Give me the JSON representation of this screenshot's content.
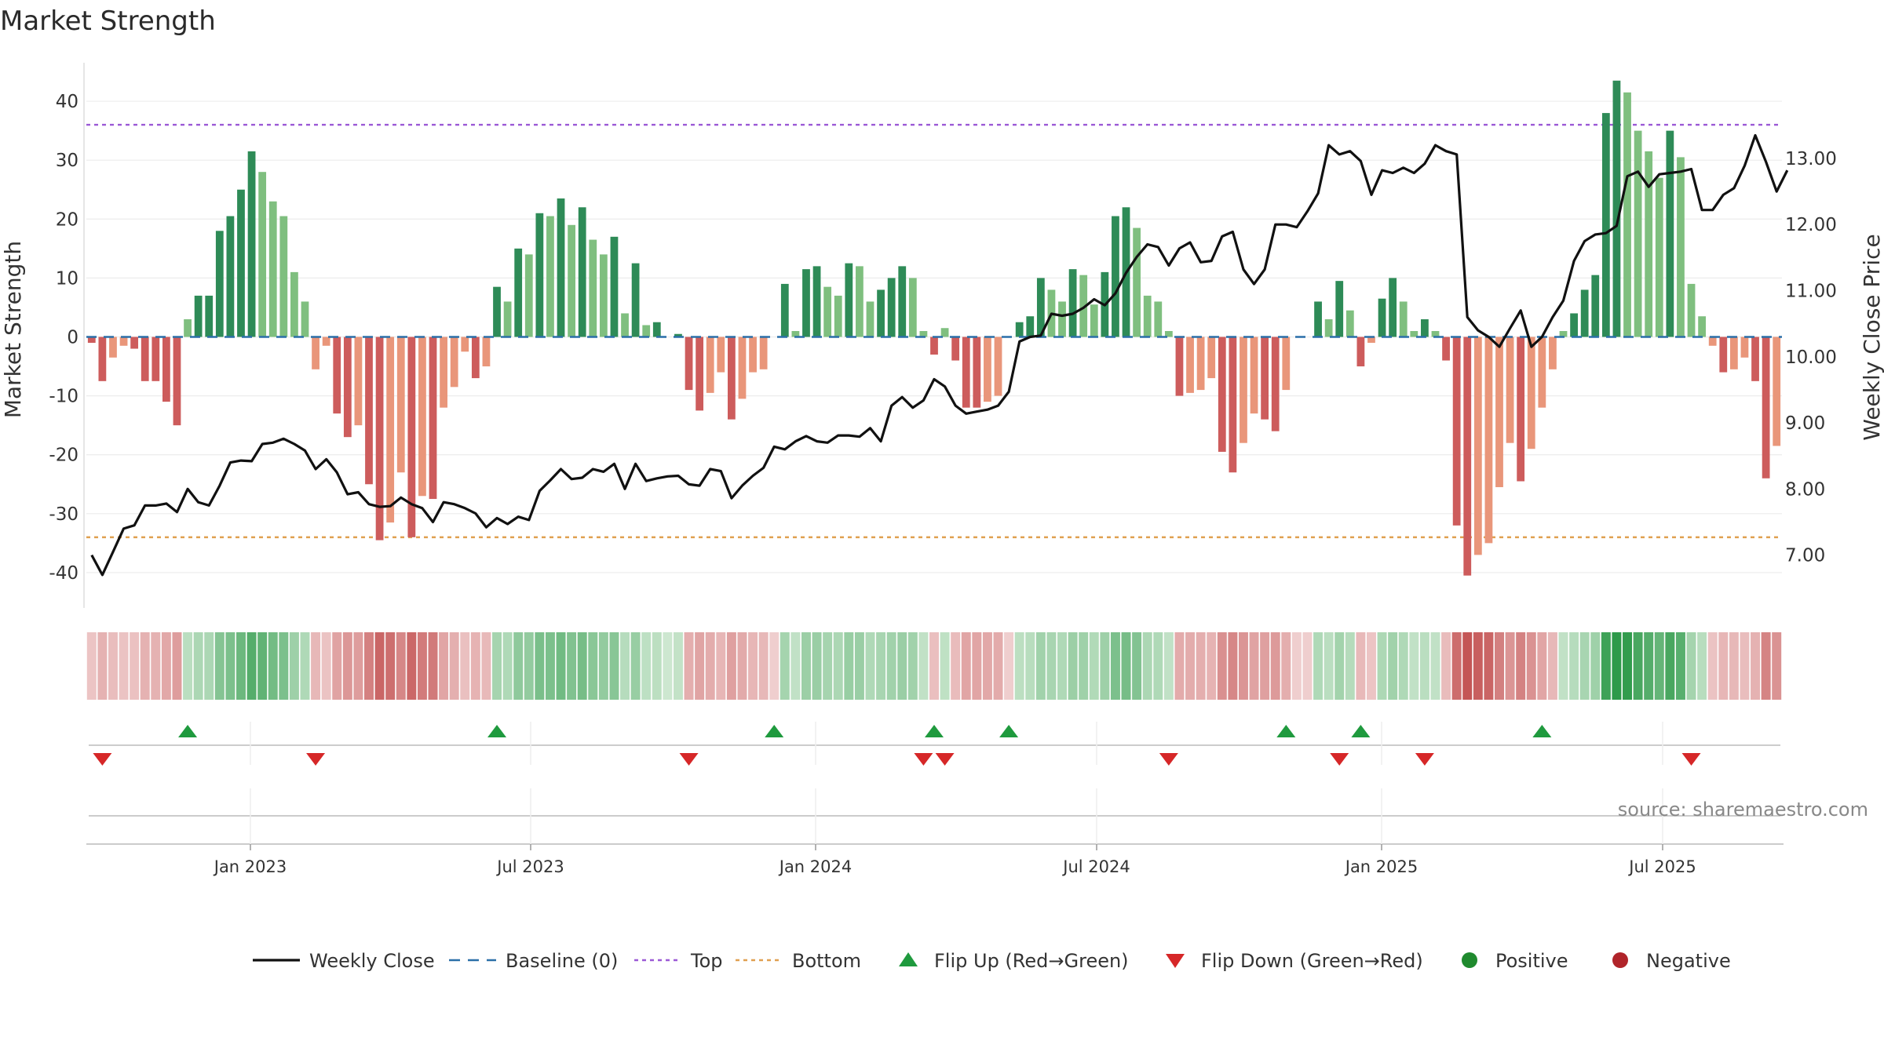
{
  "chart_data": {
    "type": "bar+line",
    "title": "Market Strength",
    "ylabel_left": "Market Strength",
    "ylabel_right": "Weekly Close Price",
    "source": "source: sharemaestro.com",
    "left_axis": {
      "ticks": [
        40,
        30,
        20,
        10,
        0,
        -10,
        -20,
        -30,
        -40
      ],
      "range": [
        -46,
        46
      ]
    },
    "right_axis": {
      "ticks": [
        "13.00",
        "12.00",
        "11.00",
        "10.00",
        "9.00",
        "8.00",
        "7.00"
      ],
      "range": [
        6.2,
        14.4
      ]
    },
    "x_ticks": [
      "Jan 2023",
      "Jul 2023",
      "Jan 2024",
      "Jul 2024",
      "Jan 2025",
      "Jul 2025"
    ],
    "top_level": 36,
    "bottom_level": -34,
    "strength": [
      -1,
      -7.5,
      -3.5,
      -1.5,
      -2,
      -7.5,
      -7.5,
      -11,
      -15,
      3,
      7,
      7,
      18,
      20.5,
      25,
      31.5,
      28,
      23,
      20.5,
      11,
      6,
      -5.5,
      -1.5,
      -13,
      -17,
      -15,
      -25,
      -34.5,
      -31.5,
      -23,
      -34,
      -27,
      -27.5,
      -12,
      -8.5,
      -2.5,
      -7,
      -5,
      8.5,
      6,
      15,
      14,
      21,
      20.5,
      23.5,
      19,
      22,
      16.5,
      14,
      17,
      4,
      12.5,
      2,
      2.5,
      0,
      0.5,
      -9,
      -12.5,
      -9.5,
      -6,
      -14,
      -10.5,
      -6,
      -5.5,
      0,
      9,
      1,
      11.5,
      12,
      8.5,
      7,
      12.5,
      12,
      6,
      8,
      10,
      12,
      10,
      1,
      -3,
      1.5,
      -4,
      -12,
      -12,
      -11,
      -10,
      0,
      2.5,
      3.5,
      10,
      8,
      6,
      11.5,
      10.5,
      5.5,
      11,
      20.5,
      22,
      18.5,
      7,
      6,
      1,
      -10,
      -9.5,
      -9,
      -7,
      -19.5,
      -23,
      -18,
      -13,
      -14,
      -16,
      -9,
      0,
      0,
      6,
      3,
      9.5,
      4.5,
      -5,
      -1,
      6.5,
      10,
      6,
      1,
      3,
      1,
      -4,
      -32,
      -40.5,
      -37,
      -35,
      -25.5,
      -18,
      -24.5,
      -19,
      -12,
      -5.5,
      1,
      4,
      8,
      10.5,
      38,
      43.5,
      41.5,
      35,
      31.5,
      27,
      35,
      30.5,
      9,
      3.5,
      -1.5,
      -6,
      -5.5,
      -3.5,
      -7.5,
      -24,
      -18.5
    ],
    "close": [
      7.0,
      6.7,
      7.05,
      7.4,
      7.45,
      7.75,
      7.75,
      7.78,
      7.65,
      8.0,
      7.8,
      7.75,
      8.05,
      8.4,
      8.43,
      8.42,
      8.68,
      8.7,
      8.76,
      8.68,
      8.58,
      8.3,
      8.45,
      8.25,
      7.92,
      7.95,
      7.77,
      7.73,
      7.74,
      7.87,
      7.77,
      7.71,
      7.5,
      7.8,
      7.77,
      7.71,
      7.63,
      7.42,
      7.56,
      7.47,
      7.58,
      7.53,
      7.97,
      8.13,
      8.3,
      8.15,
      8.17,
      8.3,
      8.26,
      8.38,
      8.0,
      8.38,
      8.12,
      8.16,
      8.19,
      8.2,
      8.07,
      8.05,
      8.3,
      8.27,
      7.86,
      8.05,
      8.2,
      8.32,
      8.64,
      8.6,
      8.72,
      8.8,
      8.72,
      8.7,
      8.81,
      8.81,
      8.79,
      8.92,
      8.72,
      9.26,
      9.39,
      9.23,
      9.34,
      9.66,
      9.55,
      9.26,
      9.14,
      9.17,
      9.2,
      9.26,
      9.47,
      10.23,
      10.3,
      10.32,
      10.65,
      10.62,
      10.65,
      10.74,
      10.87,
      10.78,
      10.96,
      11.27,
      11.51,
      11.7,
      11.66,
      11.38,
      11.64,
      11.73,
      11.43,
      11.45,
      11.82,
      11.89,
      11.32,
      11.1,
      11.32,
      12.0,
      12.0,
      11.96,
      12.2,
      12.47,
      13.2,
      13.06,
      13.11,
      12.96,
      12.45,
      12.82,
      12.78,
      12.86,
      12.78,
      12.92,
      13.2,
      13.11,
      13.06,
      10.6,
      10.4,
      10.3,
      10.15,
      10.43,
      10.7,
      10.15,
      10.3,
      10.6,
      10.85,
      11.45,
      11.75,
      11.85,
      11.87,
      11.98,
      12.73,
      12.8,
      12.57,
      12.76,
      12.78,
      12.8,
      12.84,
      12.22,
      12.22,
      12.45,
      12.55,
      12.89,
      13.35,
      12.95,
      12.5,
      12.82
    ],
    "flip_up_index": [
      9,
      38,
      64,
      79,
      86,
      112,
      119,
      136
    ],
    "flip_down_index": [
      1,
      21,
      56,
      78,
      80,
      101,
      117,
      125,
      150
    ],
    "legend": [
      {
        "label": "Weekly Close",
        "kind": "line",
        "color": "#111111"
      },
      {
        "label": "Baseline (0)",
        "kind": "dash",
        "color": "#2a6fa8"
      },
      {
        "label": "Top",
        "kind": "dot",
        "color": "#9b59d6"
      },
      {
        "label": "Bottom",
        "kind": "dot",
        "color": "#e0a050"
      },
      {
        "label": "Flip Up (Red→Green)",
        "kind": "tri-up",
        "color": "#1f9a3e"
      },
      {
        "label": "Flip Down (Green→Red)",
        "kind": "tri-down",
        "color": "#d62728"
      },
      {
        "label": "Positive",
        "kind": "circle",
        "color": "#1f8a2e"
      },
      {
        "label": "Negative",
        "kind": "circle",
        "color": "#b0242a"
      }
    ],
    "colors": {
      "pos_strong": "#2e8b57",
      "pos_weak": "#7fbf7f",
      "neg_strong": "#cd5c5c",
      "neg_weak": "#e9967a",
      "line": "#111111",
      "baseline": "#2a6fa8",
      "top": "#9b59d6",
      "bottom": "#e0a050",
      "flip_up": "#1f9a3e",
      "flip_down": "#d62728"
    }
  }
}
